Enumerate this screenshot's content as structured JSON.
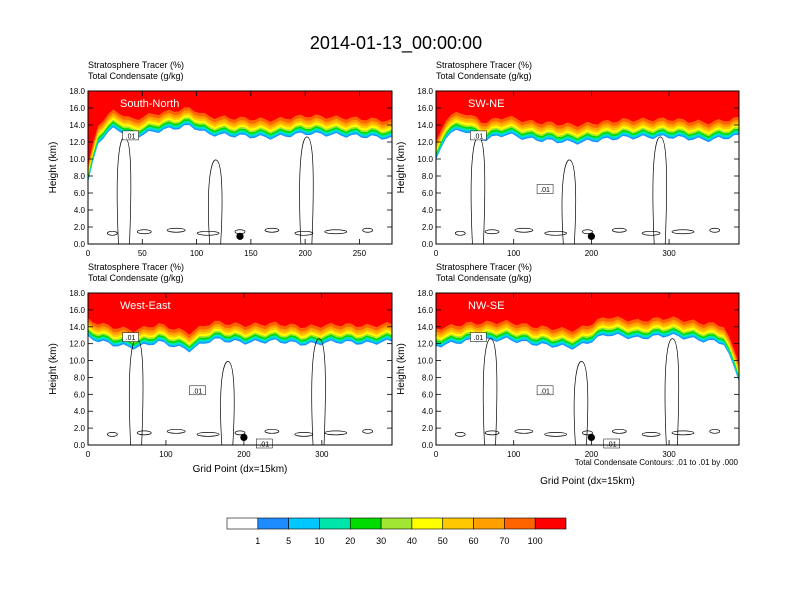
{
  "figure": {
    "title": "2014-01-13_00:00:00",
    "contour_note": "Total Condensate Contours: .01 to .01 by .000"
  },
  "colorbar": {
    "colors": [
      "#ffffff",
      "#1e8cff",
      "#00c8ff",
      "#00e6aa",
      "#00dc00",
      "#a0e632",
      "#ffff00",
      "#ffc800",
      "#ffa000",
      "#ff6400",
      "#ff0000"
    ],
    "labels": [
      "1",
      "5",
      "10",
      "20",
      "30",
      "40",
      "50",
      "60",
      "70",
      "100"
    ]
  },
  "chart_data": [
    {
      "type": "heatmap",
      "panel": "top-left",
      "section_label": "South-North",
      "subtitle_1": "Stratosphere Tracer   (%)",
      "subtitle_2": "Total Condensate   (g/kg)",
      "ylabel": "Height (km)",
      "xlabel": "",
      "xlim": [
        0,
        280
      ],
      "ylim": [
        0,
        18
      ],
      "x_ticks": [
        "0",
        "50",
        "100",
        "150",
        "200",
        "250"
      ],
      "y_ticks": [
        "0.0",
        "2.0",
        "4.0",
        "6.0",
        "8.0",
        "10.0",
        "12.0",
        "14.0",
        "16.0",
        "18.0"
      ],
      "marker_x": 140,
      "contour_labels": [
        ".01"
      ],
      "tropopause_km": [
        [
          0,
          9.5
        ],
        [
          10,
          14.5
        ],
        [
          25,
          16
        ],
        [
          40,
          14.8
        ],
        [
          60,
          15.5
        ],
        [
          95,
          16.2
        ],
        [
          110,
          15.2
        ],
        [
          140,
          15
        ],
        [
          170,
          14.8
        ],
        [
          200,
          15.3
        ],
        [
          230,
          15.1
        ],
        [
          260,
          14.9
        ],
        [
          280,
          14.7
        ]
      ]
    },
    {
      "type": "heatmap",
      "panel": "top-right",
      "section_label": "SW-NE",
      "subtitle_1": "Stratosphere Tracer   (%)",
      "subtitle_2": "Total Condensate   (g/kg)",
      "ylabel": "Height (km)",
      "xlabel": "",
      "xlim": [
        0,
        390
      ],
      "ylim": [
        0,
        18
      ],
      "x_ticks": [
        "0",
        "100",
        "200",
        "300"
      ],
      "y_ticks": [
        "0.0",
        "2.0",
        "4.0",
        "6.0",
        "8.0",
        "10.0",
        "12.0",
        "14.0",
        "16.0",
        "18.0"
      ],
      "marker_x": 200,
      "contour_labels": [
        ".01",
        ".01"
      ],
      "tropopause_km": [
        [
          0,
          12
        ],
        [
          15,
          15.4
        ],
        [
          40,
          15.6
        ],
        [
          60,
          14.5
        ],
        [
          90,
          15.2
        ],
        [
          120,
          14.6
        ],
        [
          180,
          14.2
        ],
        [
          240,
          14.8
        ],
        [
          300,
          14.9
        ],
        [
          350,
          14.5
        ],
        [
          390,
          15
        ]
      ]
    },
    {
      "type": "heatmap",
      "panel": "bottom-left",
      "section_label": "West-East",
      "subtitle_1": "Stratosphere Tracer   (%)",
      "subtitle_2": "Total Condensate   (g/kg)",
      "ylabel": "Height (km)",
      "xlabel": "Grid Point (dx=15km)",
      "xlim": [
        0,
        390
      ],
      "ylim": [
        0,
        18
      ],
      "x_ticks": [
        "0",
        "100",
        "200",
        "300"
      ],
      "y_ticks": [
        "0.0",
        "2.0",
        "4.0",
        "6.0",
        "8.0",
        "10.0",
        "12.0",
        "14.0",
        "16.0",
        "18.0"
      ],
      "marker_x": 200,
      "contour_labels": [
        ".01",
        ".01",
        ".01"
      ],
      "tropopause_km": [
        [
          0,
          15
        ],
        [
          30,
          14.2
        ],
        [
          60,
          13.8
        ],
        [
          90,
          14.5
        ],
        [
          130,
          13.5
        ],
        [
          160,
          14.8
        ],
        [
          200,
          14.4
        ],
        [
          240,
          14.6
        ],
        [
          280,
          14.2
        ],
        [
          320,
          14.5
        ],
        [
          360,
          14.3
        ],
        [
          390,
          14.6
        ]
      ]
    },
    {
      "type": "heatmap",
      "panel": "bottom-right",
      "section_label": "NW-SE",
      "subtitle_1": "Stratosphere Tracer   (%)",
      "subtitle_2": "Total Condensate   (g/kg)",
      "ylabel": "Height (km)",
      "xlabel": "Grid Point (dx=15km)",
      "xlim": [
        0,
        390
      ],
      "ylim": [
        0,
        18
      ],
      "x_ticks": [
        "0",
        "100",
        "200",
        "300"
      ],
      "y_ticks": [
        "0.0",
        "2.0",
        "4.0",
        "6.0",
        "8.0",
        "10.0",
        "12.0",
        "14.0",
        "16.0",
        "18.0"
      ],
      "marker_x": 200,
      "contour_labels": [
        ".01",
        ".01",
        ".01"
      ],
      "tropopause_km": [
        [
          0,
          14
        ],
        [
          40,
          14.6
        ],
        [
          90,
          14.8
        ],
        [
          130,
          14.2
        ],
        [
          180,
          13.8
        ],
        [
          220,
          15.4
        ],
        [
          260,
          14.9
        ],
        [
          300,
          15.3
        ],
        [
          340,
          14.7
        ],
        [
          370,
          14.4
        ],
        [
          390,
          10
        ]
      ]
    }
  ]
}
